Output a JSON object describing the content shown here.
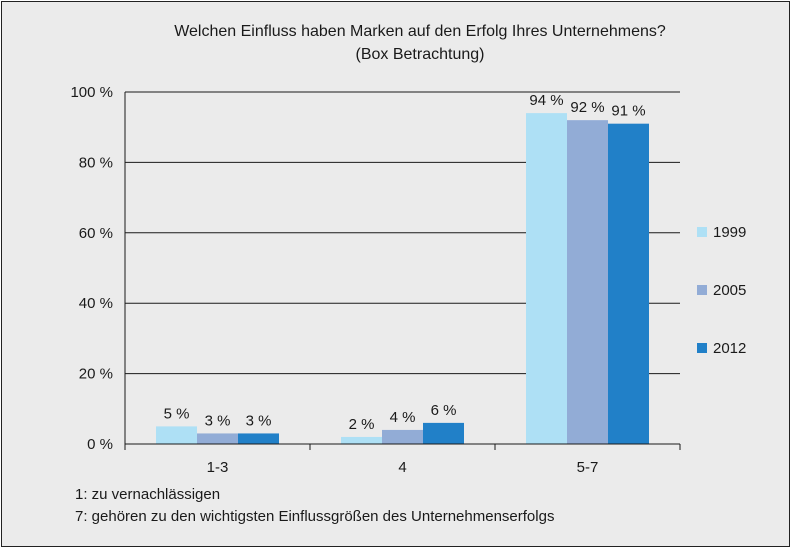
{
  "chart_data": {
    "type": "bar",
    "title": "Welchen Einfluss haben Marken auf den Erfolg Ihres Unternehmens?",
    "subtitle": "(Box Betrachtung)",
    "categories": [
      "1-3",
      "4",
      "5-7"
    ],
    "series": [
      {
        "name": "1999",
        "color": "#aee0f5",
        "values": [
          5,
          2,
          94
        ],
        "labels": [
          "5 %",
          "2 %",
          "94 %"
        ]
      },
      {
        "name": "2005",
        "color": "#92acd6",
        "values": [
          3,
          4,
          92
        ],
        "labels": [
          "3 %",
          "4 %",
          "92 %"
        ]
      },
      {
        "name": "2012",
        "color": "#2180c8",
        "values": [
          3,
          6,
          91
        ],
        "labels": [
          "3 %",
          "6 %",
          "91 %"
        ]
      }
    ],
    "yticks": [
      "0 %",
      "20 %",
      "40 %",
      "60 %",
      "80 %",
      "100 %"
    ],
    "ylim": [
      0,
      100
    ],
    "xlabel": "",
    "ylabel": "",
    "legend_position": "right",
    "notes": [
      "1:  zu vernachlässigen",
      "7:  gehören zu den wichtigsten Einflussgrößen des Unternehmenserfolgs"
    ]
  }
}
